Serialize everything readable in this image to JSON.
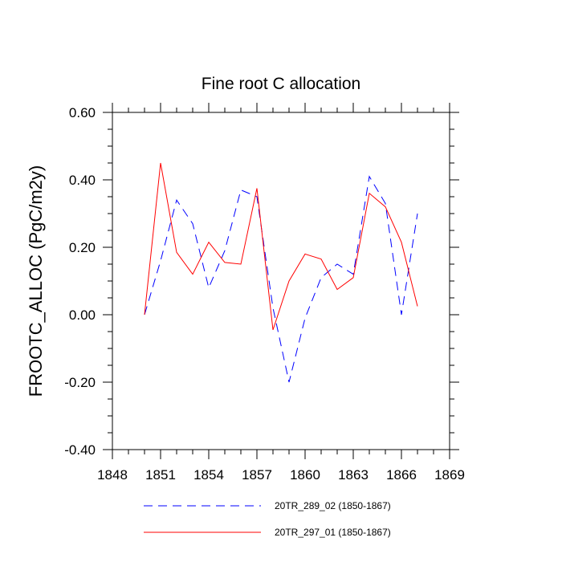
{
  "chart_data": {
    "type": "line",
    "title": "Fine root C allocation",
    "xlabel": "",
    "ylabel": "FROOTC_ALLOC  (PgC/m2y)",
    "xlim": [
      1848,
      1869
    ],
    "ylim": [
      -0.4,
      0.6
    ],
    "xticks": [
      1848,
      1851,
      1854,
      1857,
      1860,
      1863,
      1866,
      1869
    ],
    "xtick_labels": [
      "1848",
      "1851",
      "1854",
      "1857",
      "1860",
      "1863",
      "1866",
      "1869"
    ],
    "yticks": [
      -0.4,
      -0.2,
      0.0,
      0.2,
      0.4,
      0.6
    ],
    "ytick_labels": [
      "-0.40",
      "-0.20",
      "0.00",
      "0.20",
      "0.40",
      "0.60"
    ],
    "x": [
      1850,
      1851,
      1852,
      1853,
      1854,
      1855,
      1856,
      1857,
      1858,
      1859,
      1860,
      1861,
      1862,
      1863,
      1864,
      1865,
      1866,
      1867
    ],
    "series": [
      {
        "name": "20TR_289_02 (1850-1867)",
        "color": "#0000ff",
        "style": "dashed",
        "values": [
          0.0,
          0.16,
          0.34,
          0.27,
          0.08,
          0.19,
          0.37,
          0.35,
          0.02,
          -0.2,
          -0.01,
          0.11,
          0.15,
          0.12,
          0.41,
          0.33,
          0.0,
          0.3
        ]
      },
      {
        "name": "20TR_297_01 (1850-1867)",
        "color": "#ff0000",
        "style": "solid",
        "values": [
          0.0,
          0.45,
          0.185,
          0.12,
          0.215,
          0.155,
          0.15,
          0.375,
          -0.045,
          0.1,
          0.18,
          0.165,
          0.075,
          0.11,
          0.36,
          0.32,
          0.215,
          0.025
        ]
      }
    ],
    "legend_position": "bottom"
  }
}
